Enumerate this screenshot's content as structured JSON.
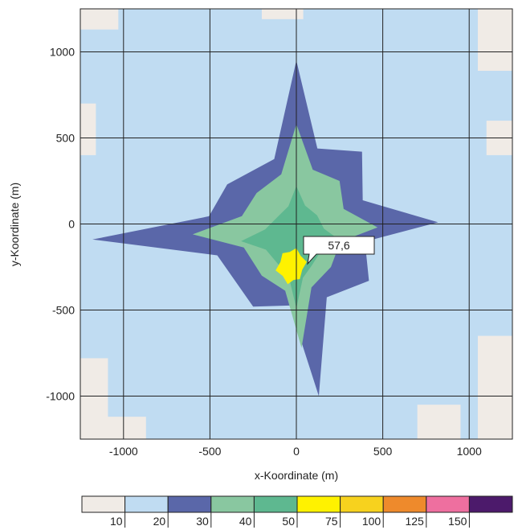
{
  "chart_data": {
    "type": "heatmap",
    "xlabel": "x-Koordinate (m)",
    "ylabel": "y-Koordinate (m)",
    "xlim": [
      -1250,
      1250
    ],
    "ylim": [
      -1250,
      1250
    ],
    "xticks": [
      -1000,
      -500,
      0,
      500,
      1000
    ],
    "yticks": [
      -1000,
      -500,
      0,
      500,
      1000
    ],
    "grid": true,
    "annotation": {
      "label": "57,6",
      "x": 0,
      "y": -200
    },
    "peak_value": 57.6,
    "legend": {
      "placement": "bottom",
      "labels": [
        "10",
        "20",
        "30",
        "40",
        "50",
        "75",
        "100",
        "125",
        "150"
      ],
      "colors": [
        "#f0ebe6",
        "#c0dcf2",
        "#5a67a9",
        "#89c7a0",
        "#5eb890",
        "#fff200",
        "#f7d21e",
        "#ee8a2c",
        "#ee6f9f",
        "#4c1a6b"
      ]
    },
    "field": {
      "colors": {
        "background": "#c0dcf2",
        "corner": "#f0ebe6",
        "level_30": "#5a67a9",
        "level_40": "#89c7a0",
        "level_50": "#5eb890",
        "peak": "#fff200"
      }
    }
  }
}
